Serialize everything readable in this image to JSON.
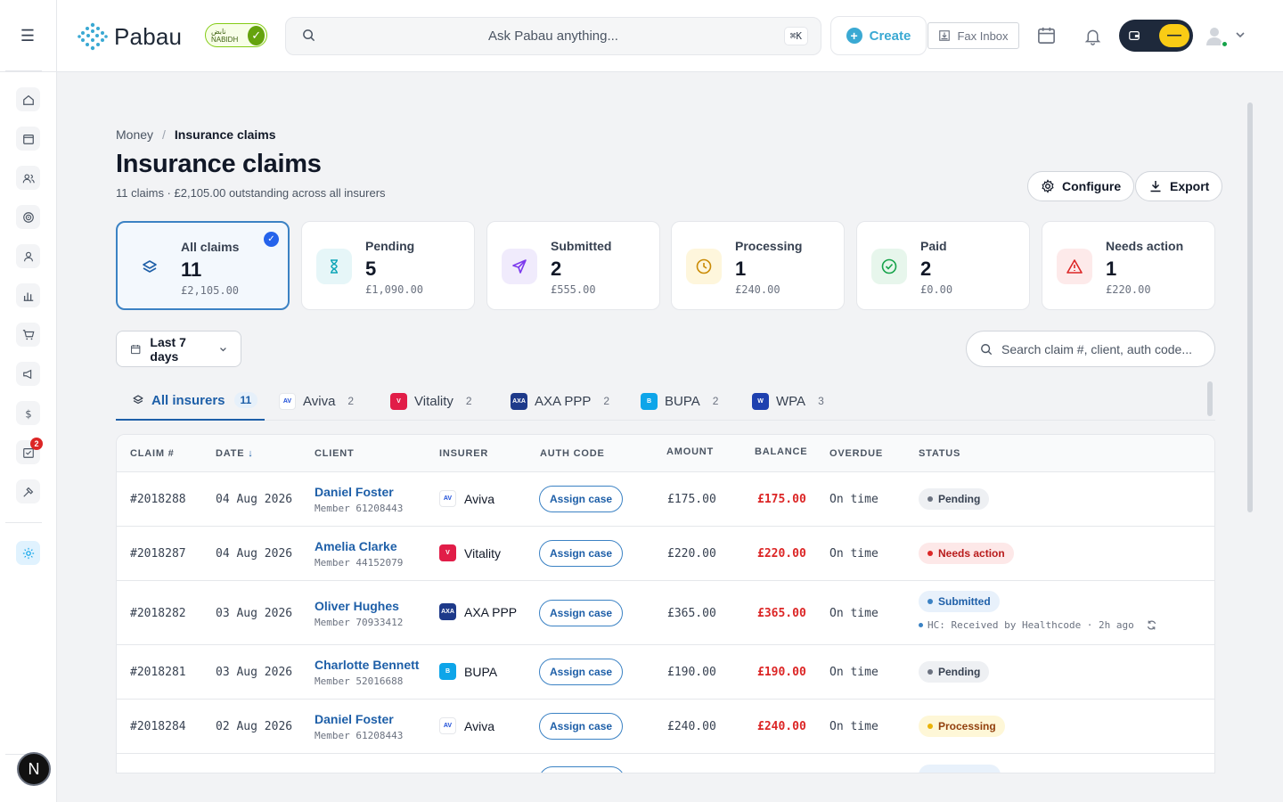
{
  "topbar": {
    "logo_text": "Pabau",
    "nabidh_label": "نابض NABIDH",
    "search_placeholder": "Ask Pabau anything...",
    "search_shortcut": "⌘K",
    "create_label": "Create",
    "fax_label": "Fax Inbox"
  },
  "sidebar": {
    "notification_count": "2",
    "user_initial": "N"
  },
  "breadcrumb": {
    "parent": "Money",
    "sep": "/",
    "current": "Insurance claims"
  },
  "page": {
    "title": "Insurance claims",
    "subtitle": "11 claims · £2,105.00 outstanding across all insurers",
    "configure_label": "Configure",
    "export_label": "Export"
  },
  "cards": [
    {
      "label": "All claims",
      "count": "11",
      "amount": "£2,105.00",
      "icon": "layers-icon",
      "color": "#1e5fa8"
    },
    {
      "label": "Pending",
      "count": "5",
      "amount": "£1,090.00",
      "icon": "hourglass-icon",
      "color": "#0ea5b7"
    },
    {
      "label": "Submitted",
      "count": "2",
      "amount": "£555.00",
      "icon": "send-icon",
      "color": "#7c3aed"
    },
    {
      "label": "Processing",
      "count": "1",
      "amount": "£240.00",
      "icon": "clock-icon",
      "color": "#ca8a04"
    },
    {
      "label": "Paid",
      "count": "2",
      "amount": "£0.00",
      "icon": "check-circle-icon",
      "color": "#16a34a"
    },
    {
      "label": "Needs action",
      "count": "1",
      "amount": "£220.00",
      "icon": "warning-icon",
      "color": "#dc2626"
    }
  ],
  "filters": {
    "date_range": "Last 7 days",
    "search_placeholder": "Search claim #, client, auth code..."
  },
  "tabs": [
    {
      "label": "All insurers",
      "count": "11"
    },
    {
      "label": "Aviva",
      "count": "2"
    },
    {
      "label": "Vitality",
      "count": "2"
    },
    {
      "label": "AXA PPP",
      "count": "2"
    },
    {
      "label": "BUPA",
      "count": "2"
    },
    {
      "label": "WPA",
      "count": "3"
    }
  ],
  "table": {
    "headers": {
      "claim": "CLAIM #",
      "date": "DATE",
      "client": "CLIENT",
      "insurer": "INSURER",
      "auth": "AUTH CODE",
      "amount": "AMOUNT",
      "balance": "BALANCE",
      "overdue": "OVERDUE",
      "status": "STATUS"
    },
    "assign_label": "Assign case",
    "rows": [
      {
        "claim": "#2018288",
        "date": "04 Aug 2026",
        "client": "Daniel Foster",
        "member": "Member 61208443",
        "insurer": "Aviva",
        "amount": "£175.00",
        "balance": "£175.00",
        "overdue": "On time",
        "status": "Pending"
      },
      {
        "claim": "#2018287",
        "date": "04 Aug 2026",
        "client": "Amelia Clarke",
        "member": "Member 44152079",
        "insurer": "Vitality",
        "amount": "£220.00",
        "balance": "£220.00",
        "overdue": "On time",
        "status": "Needs action"
      },
      {
        "claim": "#2018282",
        "date": "03 Aug 2026",
        "client": "Oliver Hughes",
        "member": "Member 70933412",
        "insurer": "AXA PPP",
        "amount": "£365.00",
        "balance": "£365.00",
        "overdue": "On time",
        "status": "Submitted",
        "note": "HC: Received by Healthcode · 2h ago"
      },
      {
        "claim": "#2018281",
        "date": "03 Aug 2026",
        "client": "Charlotte Bennett",
        "member": "Member 52016688",
        "insurer": "BUPA",
        "amount": "£190.00",
        "balance": "£190.00",
        "overdue": "On time",
        "status": "Pending"
      },
      {
        "claim": "#2018284",
        "date": "02 Aug 2026",
        "client": "Daniel Foster",
        "member": "Member 61208443",
        "insurer": "Aviva",
        "amount": "£240.00",
        "balance": "£240.00",
        "overdue": "On time",
        "status": "Processing"
      }
    ]
  }
}
